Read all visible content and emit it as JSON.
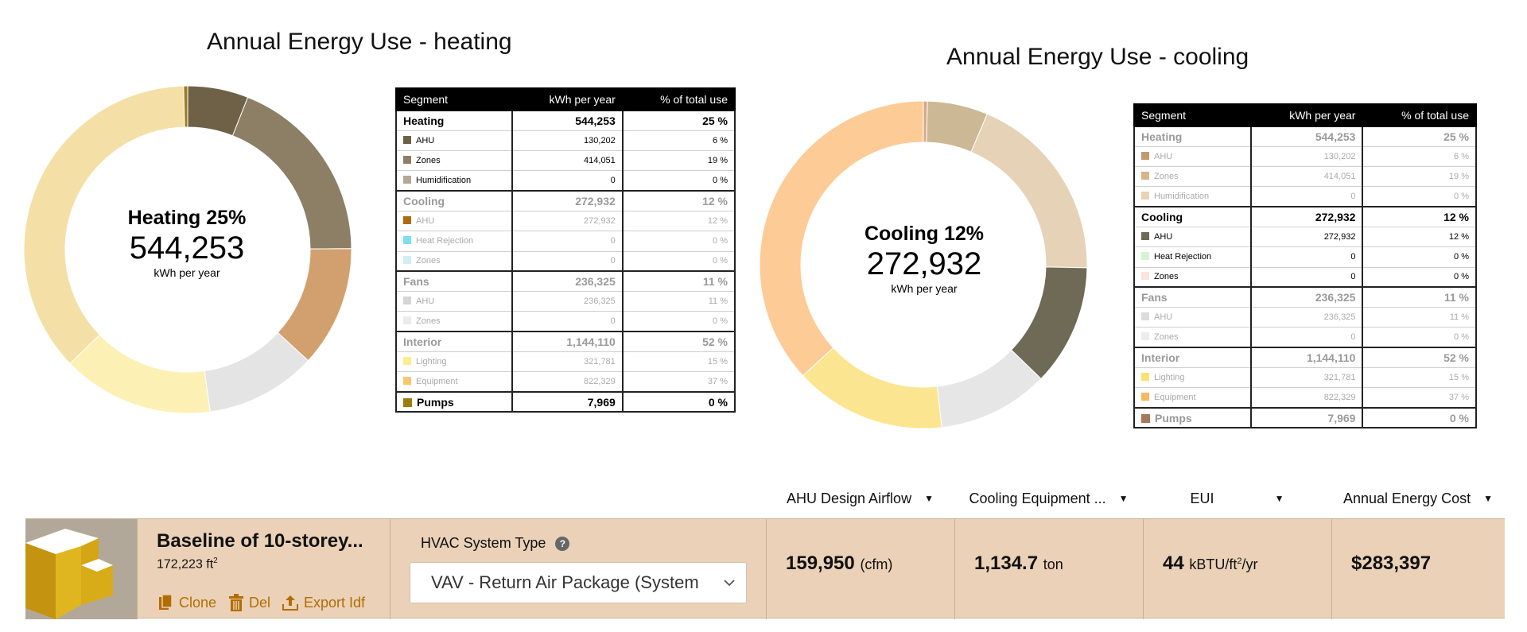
{
  "charts": {
    "heating": {
      "title": "Annual Energy Use - heating",
      "center": {
        "title": "Heating 25%",
        "value": "544,253",
        "unit": "kWh per year"
      }
    },
    "cooling": {
      "title": "Annual Energy Use - cooling",
      "center": {
        "title": "Cooling 12%",
        "value": "272,932",
        "unit": "kWh per year"
      }
    }
  },
  "chart_data": [
    {
      "type": "pie",
      "title": "Annual Energy Use - heating",
      "labels": [
        "Humidification",
        "AHU (Heating)",
        "Zones (Heating)",
        "AHU (Cooling)",
        "AHU (Fans)",
        "Lighting",
        "Equipment",
        "Pumps"
      ],
      "values": [
        0.005,
        6,
        19,
        12,
        11,
        15,
        37,
        0.4
      ],
      "colors": [
        "#c2b59a",
        "#6e6148",
        "#8c7f66",
        "#d2a06e",
        "#e4e4e4",
        "#fcf0b4",
        "#f4e0a6",
        "#9c7c24"
      ]
    },
    {
      "type": "pie",
      "title": "Annual Energy Use - cooling",
      "labels": [
        "Pumps",
        "AHU (Heating)",
        "Zones (Heating)",
        "AHU (Cooling)",
        "AHU (Fans)",
        "Lighting",
        "Equipment"
      ],
      "values": [
        0.4,
        6,
        19,
        12,
        11,
        15,
        37
      ],
      "colors": [
        "#d8a888",
        "#cdb896",
        "#e6d2b6",
        "#6e6a55",
        "#e6e6e6",
        "#fce590",
        "#fdcb95"
      ]
    }
  ],
  "tables": {
    "header": {
      "segment": "Segment",
      "kwh": "kWh per year",
      "pct": "% of total use"
    },
    "heating_rows": [
      {
        "seg": "Heating",
        "kwh": "544,253",
        "pct": "25 %",
        "type": "cat",
        "color": "",
        "muted": false
      },
      {
        "seg": "AHU",
        "kwh": "130,202",
        "pct": "6 %",
        "type": "sub",
        "color": "#6e6148",
        "muted": false
      },
      {
        "seg": "Zones",
        "kwh": "414,051",
        "pct": "19 %",
        "type": "sub",
        "color": "#8c7f66",
        "muted": false
      },
      {
        "seg": "Humidification",
        "kwh": "0",
        "pct": "0 %",
        "type": "sub",
        "color": "#b3aa96",
        "muted": false
      },
      {
        "seg": "Cooling",
        "kwh": "272,932",
        "pct": "12 %",
        "type": "cat",
        "color": "",
        "muted": true
      },
      {
        "seg": "AHU",
        "kwh": "272,932",
        "pct": "12 %",
        "type": "sub",
        "color": "#b06a10",
        "muted": true
      },
      {
        "seg": "Heat Rejection",
        "kwh": "0",
        "pct": "0 %",
        "type": "sub",
        "color": "#7ee0ec",
        "muted": true
      },
      {
        "seg": "Zones",
        "kwh": "0",
        "pct": "0 %",
        "type": "sub",
        "color": "#d4ecf4",
        "muted": true
      },
      {
        "seg": "Fans",
        "kwh": "236,325",
        "pct": "11 %",
        "type": "cat",
        "color": "",
        "muted": true
      },
      {
        "seg": "AHU",
        "kwh": "236,325",
        "pct": "11 %",
        "type": "sub",
        "color": "#d4d4d4",
        "muted": true
      },
      {
        "seg": "Zones",
        "kwh": "0",
        "pct": "0 %",
        "type": "sub",
        "color": "#ebebeb",
        "muted": true
      },
      {
        "seg": "Interior",
        "kwh": "1,144,110",
        "pct": "52 %",
        "type": "cat",
        "color": "",
        "muted": true
      },
      {
        "seg": "Lighting",
        "kwh": "321,781",
        "pct": "15 %",
        "type": "sub",
        "color": "#fcec8c",
        "muted": true
      },
      {
        "seg": "Equipment",
        "kwh": "822,329",
        "pct": "37 %",
        "type": "sub",
        "color": "#f4c870",
        "muted": true
      },
      {
        "seg": "Pumps",
        "kwh": "7,969",
        "pct": "0 %",
        "type": "cat",
        "color": "#9c7c10",
        "muted": false
      }
    ],
    "cooling_rows": [
      {
        "seg": "Heating",
        "kwh": "544,253",
        "pct": "25 %",
        "type": "cat",
        "color": "",
        "muted": true
      },
      {
        "seg": "AHU",
        "kwh": "130,202",
        "pct": "6 %",
        "type": "sub",
        "color": "#c49a6c",
        "muted": true
      },
      {
        "seg": "Zones",
        "kwh": "414,051",
        "pct": "19 %",
        "type": "sub",
        "color": "#d6b48c",
        "muted": true
      },
      {
        "seg": "Humidification",
        "kwh": "0",
        "pct": "0 %",
        "type": "sub",
        "color": "#ead2b4",
        "muted": true
      },
      {
        "seg": "Cooling",
        "kwh": "272,932",
        "pct": "12 %",
        "type": "cat",
        "color": "",
        "muted": false
      },
      {
        "seg": "AHU",
        "kwh": "272,932",
        "pct": "12 %",
        "type": "sub",
        "color": "#6e6a55",
        "muted": false
      },
      {
        "seg": "Heat Rejection",
        "kwh": "0",
        "pct": "0 %",
        "type": "sub",
        "color": "#d4f4d4",
        "muted": false
      },
      {
        "seg": "Zones",
        "kwh": "0",
        "pct": "0 %",
        "type": "sub",
        "color": "#fbe4dc",
        "muted": false
      },
      {
        "seg": "Fans",
        "kwh": "236,325",
        "pct": "11 %",
        "type": "cat",
        "color": "",
        "muted": true
      },
      {
        "seg": "AHU",
        "kwh": "236,325",
        "pct": "11 %",
        "type": "sub",
        "color": "#dcdcdc",
        "muted": true
      },
      {
        "seg": "Zones",
        "kwh": "0",
        "pct": "0 %",
        "type": "sub",
        "color": "#ececec",
        "muted": true
      },
      {
        "seg": "Interior",
        "kwh": "1,144,110",
        "pct": "52 %",
        "type": "cat",
        "color": "",
        "muted": true
      },
      {
        "seg": "Lighting",
        "kwh": "321,781",
        "pct": "15 %",
        "type": "sub",
        "color": "#fce070",
        "muted": true
      },
      {
        "seg": "Equipment",
        "kwh": "822,329",
        "pct": "37 %",
        "type": "sub",
        "color": "#f8b860",
        "muted": true
      },
      {
        "seg": "Pumps",
        "kwh": "7,969",
        "pct": "0 %",
        "type": "cat",
        "color": "#a8785c",
        "muted": true
      }
    ]
  },
  "metrics": {
    "headers": [
      "AHU Design Airflow",
      "Cooling Equipment ...",
      "EUI",
      "Annual Energy Cost"
    ],
    "airflow": {
      "value": "159,950",
      "unit": "(cfm)"
    },
    "cooling_equipment": {
      "value": "1,134.7",
      "unit": "ton"
    },
    "eui": {
      "value": "44",
      "unit_prefix": "kBTU/ft",
      "unit_sup": "2",
      "unit_suffix": "/yr"
    },
    "cost": {
      "value": "$283,397"
    }
  },
  "building": {
    "name": "Baseline of 10-storey...",
    "area_value": "172,223 ft",
    "area_sup": "2",
    "actions": {
      "clone": "Clone",
      "del": "Del",
      "export": "Export Idf"
    },
    "hvac_label": "HVAC System Type",
    "hvac_help": "?",
    "hvac_value": "VAV - Return Air Package (System"
  },
  "colors": {
    "accent": "#b26d00",
    "bar_bg": "#ead1b7"
  }
}
